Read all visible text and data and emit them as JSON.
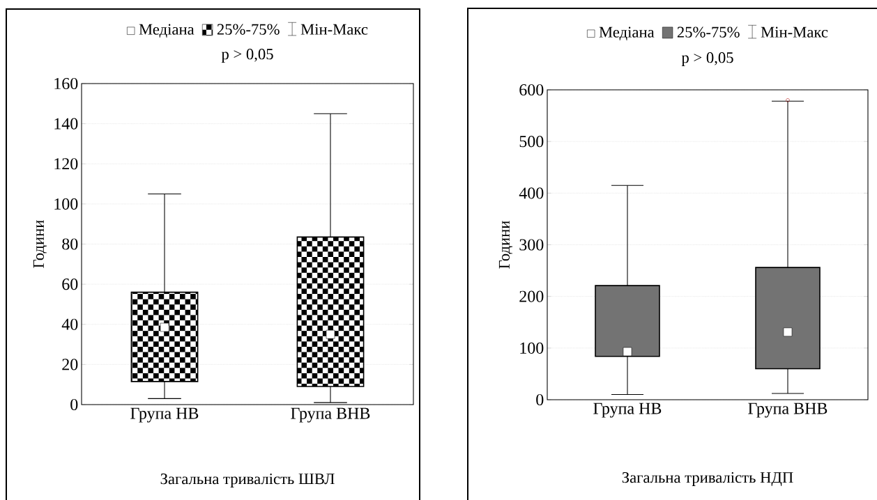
{
  "chart_data": [
    {
      "type": "box",
      "categories": [
        "Група НВ",
        "Група ВНВ"
      ],
      "boxes": [
        {
          "low": 3,
          "q1": 11.5,
          "median": 38.5,
          "q3": 56,
          "high": 105
        },
        {
          "low": 1,
          "q1": 9,
          "median": 35,
          "q3": 83.5,
          "high": 145
        }
      ],
      "ylabel": "Години",
      "xlabel": "Загальна тривалість ШВЛ",
      "annotations": [
        "Медіана",
        "25%-75%",
        "Мін-Макс",
        "p > 0,05"
      ],
      "ylim": [
        0,
        160
      ],
      "yticks": [
        0,
        20,
        40,
        60,
        80,
        100,
        120,
        140,
        160
      ],
      "grid": "y",
      "marker": "square"
    },
    {
      "type": "box",
      "categories": [
        "Група НВ",
        "Група ВНВ"
      ],
      "boxes": [
        {
          "low": 10,
          "q1": 84,
          "median": 93,
          "q3": 221,
          "high": 415
        },
        {
          "low": 12,
          "q1": 60,
          "median": 131,
          "q3": 256,
          "high": 578,
          "outliers": [
            580
          ]
        }
      ],
      "ylabel": "Години",
      "xlabel": "Загальна тривалість НДП",
      "annotations": [
        "Медіана",
        "25%-75%",
        "Мін-Макс",
        "p > 0,05"
      ],
      "ylim": [
        0,
        600
      ],
      "yticks": [
        0,
        100,
        200,
        300,
        400,
        500,
        600
      ],
      "grid": "y",
      "marker": "square"
    }
  ]
}
